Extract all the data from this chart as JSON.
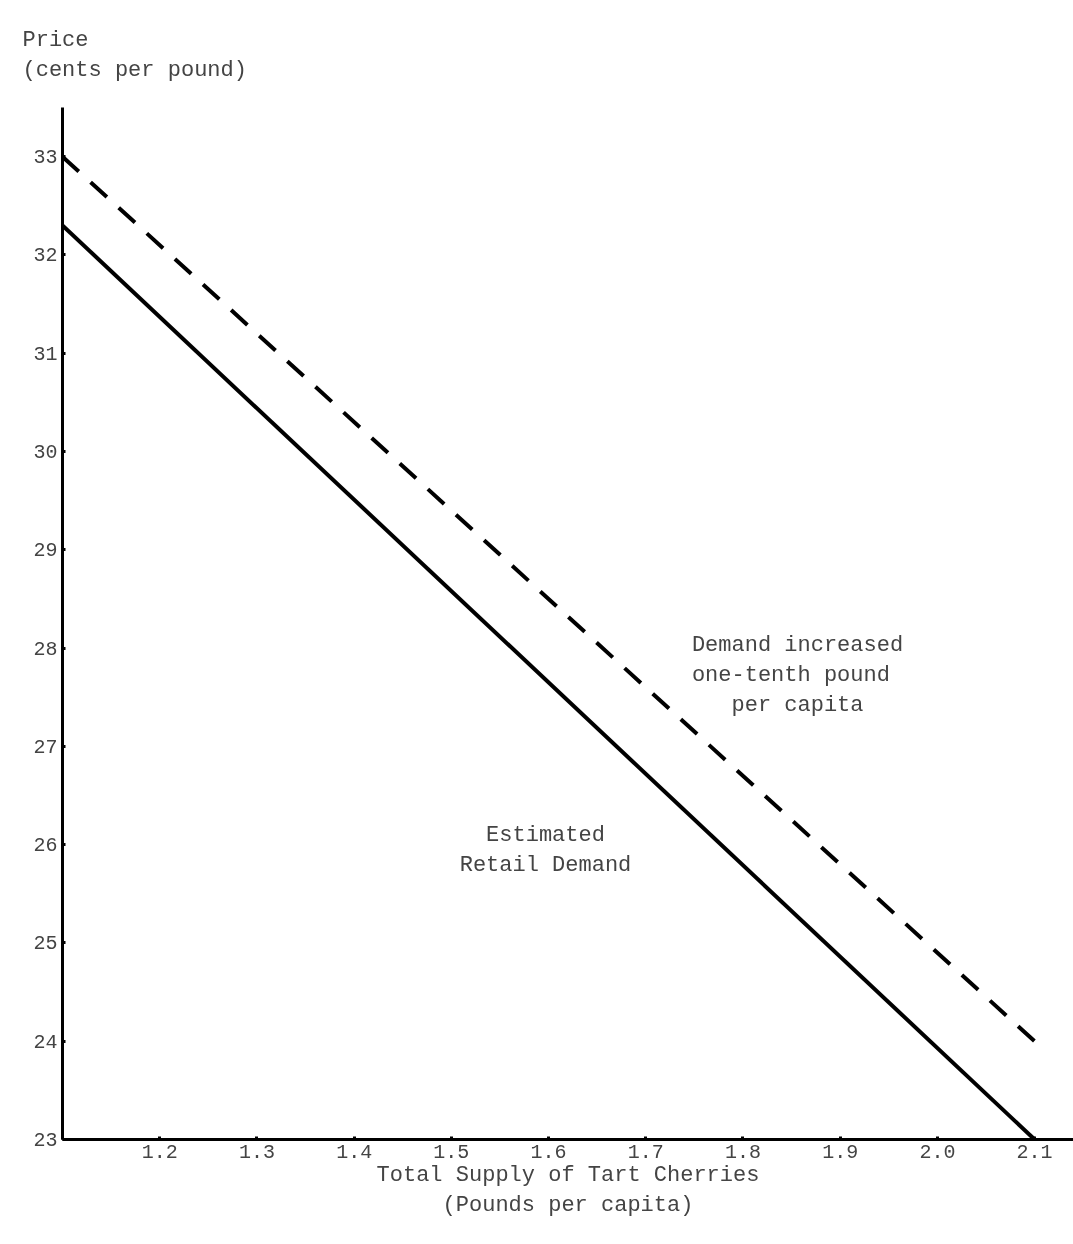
{
  "chart_data": {
    "type": "line",
    "xlabel": "Total Supply of Tart Cherries\n(Pounds per capita)",
    "ylabel": "Price\n(cents per pound)",
    "xlim": [
      1.1,
      2.14
    ],
    "ylim": [
      23,
      33.5
    ],
    "xticks": [
      {
        "value": 1.1,
        "label": null
      },
      1.2,
      1.3,
      1.4,
      1.5,
      1.6,
      1.7,
      1.8,
      1.9,
      {
        "value": 2.0,
        "label": "2.0"
      },
      2.1
    ],
    "yticks": [
      23,
      24,
      25,
      26,
      27,
      28,
      29,
      30,
      31,
      32,
      33
    ],
    "grid": false,
    "marker": "none",
    "x": [
      1.1,
      2.1
    ],
    "series": [
      {
        "color": "#000000",
        "line_style": "solid",
        "values": [
          32.3,
          23.0
        ]
      },
      {
        "color": "#000000",
        "line_style": "dashed",
        "values": [
          33.0,
          24.0
        ]
      }
    ],
    "annotations": [
      "Demand increased\n one-tenth pound\nper capita",
      "Estimated\nRetail Demand"
    ]
  }
}
